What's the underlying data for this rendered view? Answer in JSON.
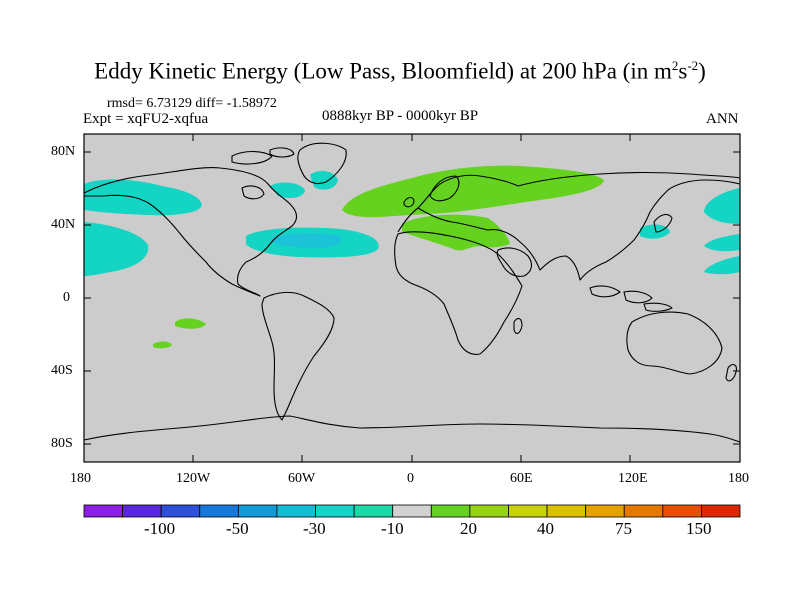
{
  "title": {
    "main": "Eddy Kinetic Energy (Low Pass, Bloomfield) at 200 hPa (in m",
    "exp1": "2",
    "mid": "s",
    "exp2": "-2",
    "close": ")"
  },
  "stats": {
    "rmsd_diff": "rmsd= 6.73129 diff= -1.58972"
  },
  "experiment": "Expt = xqFU2-xqfua",
  "period": "0888kyr BP - 0000kyr BP",
  "season": "ANN",
  "lat_ticks": [
    "80N",
    "40N",
    "0",
    "40S",
    "80S"
  ],
  "lon_ticks": [
    "180",
    "120W",
    "60W",
    "0",
    "60E",
    "120E",
    "180"
  ],
  "colorbar": {
    "colors": [
      "#8c1ee6",
      "#5a28dc",
      "#2d50dc",
      "#1478dc",
      "#109ad8",
      "#14bcd4",
      "#18d2c8",
      "#1cd8a6",
      "#d2d2d2",
      "#64d21e",
      "#98d214",
      "#c8d20a",
      "#dcc000",
      "#e6a000",
      "#e67800",
      "#e65000",
      "#e02800"
    ],
    "labels": [
      "-100",
      "-50",
      "-30",
      "-10",
      "20",
      "40",
      "75",
      "150"
    ]
  },
  "colors": {
    "land_sea_bg": "#cccccc",
    "coast": "#000000",
    "cyan_anom": "#14d4c4",
    "cyan_core": "#1cc2d8",
    "green_anom": "#64d21e"
  }
}
